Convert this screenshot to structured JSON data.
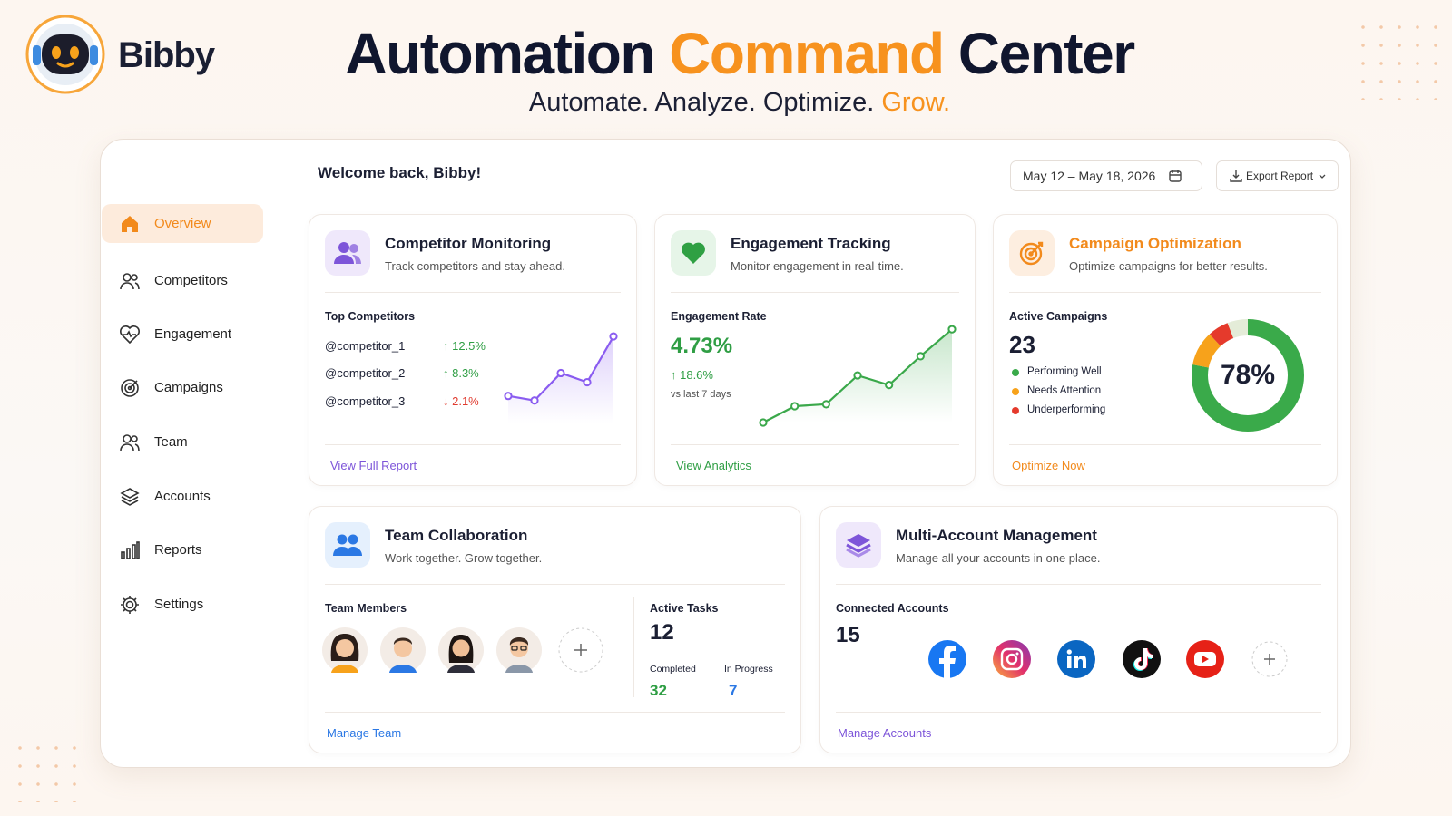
{
  "header": {
    "brand": "Bibby",
    "title": [
      "Automation",
      "Command",
      "Center"
    ],
    "tagline": [
      "Automate. Analyze. Optimize.",
      "Grow."
    ]
  },
  "sidebar": {
    "items": [
      "Overview",
      "Competitors",
      "Engagement",
      "Campaigns",
      "Team",
      "Accounts",
      "Reports",
      "Settings"
    ]
  },
  "toolbar": {
    "welcome": "Welcome back, Bibby!",
    "date_range": "May 12 – May 18, 2026",
    "export": "Export Report"
  },
  "competitor_monitoring": {
    "title": "Competitor Monitoring",
    "subtitle": "Track competitors and stay ahead.",
    "section": "Top Competitors",
    "rows": [
      {
        "name": "@competitor_1",
        "change": "↑ 12.5%"
      },
      {
        "name": "@competitor_2",
        "change": "↑ 8.3%"
      },
      {
        "name": "@competitor_3",
        "change": "↓ 2.1%"
      }
    ],
    "trend": {
      "values": [
        3,
        2.5,
        5.5,
        4.5,
        9.5
      ],
      "ylim": [
        0,
        10
      ],
      "color": "#8a5cf0"
    },
    "link": "View Full Report"
  },
  "engagement_tracking": {
    "title": "Engagement Tracking",
    "subtitle": "Monitor engagement in real-time.",
    "section": "Engagement Rate",
    "rate": "4.73%",
    "change": "↑ 18.6%",
    "period": "vs last 7 days",
    "trend": {
      "values": [
        0,
        1.7,
        1.9,
        4.9,
        3.9,
        6.9,
        9.7
      ],
      "ylim": [
        0,
        10
      ],
      "color": "#3aa84a"
    },
    "link": "View Analytics"
  },
  "campaign_optimization": {
    "title": "Campaign Optimization",
    "subtitle": "Optimize campaigns for better results.",
    "section": "Active Campaigns",
    "count": 23,
    "segments": [
      {
        "name": "Performing Well",
        "value": 78,
        "color": "#3aaa4a"
      },
      {
        "name": "Needs Attention",
        "value": 10,
        "color": "#f7a21b"
      },
      {
        "name": "Underperforming",
        "value": 6,
        "color": "#e53a2c"
      }
    ],
    "center_label": "78%",
    "link": "Optimize Now"
  },
  "team_collaboration": {
    "title": "Team Collaboration",
    "subtitle": "Work together. Grow together.",
    "section": "Team Members",
    "tasks": {
      "label": "Active Tasks",
      "total": 12,
      "completed_label": "Completed",
      "completed": 32,
      "in_progress_label": "In Progress",
      "in_progress": 7
    },
    "link": "Manage Team"
  },
  "multi_account": {
    "title": "Multi-Account Management",
    "subtitle": "Manage all your accounts in one place.",
    "section": "Connected Accounts",
    "count": 15,
    "link": "Manage Accounts"
  }
}
